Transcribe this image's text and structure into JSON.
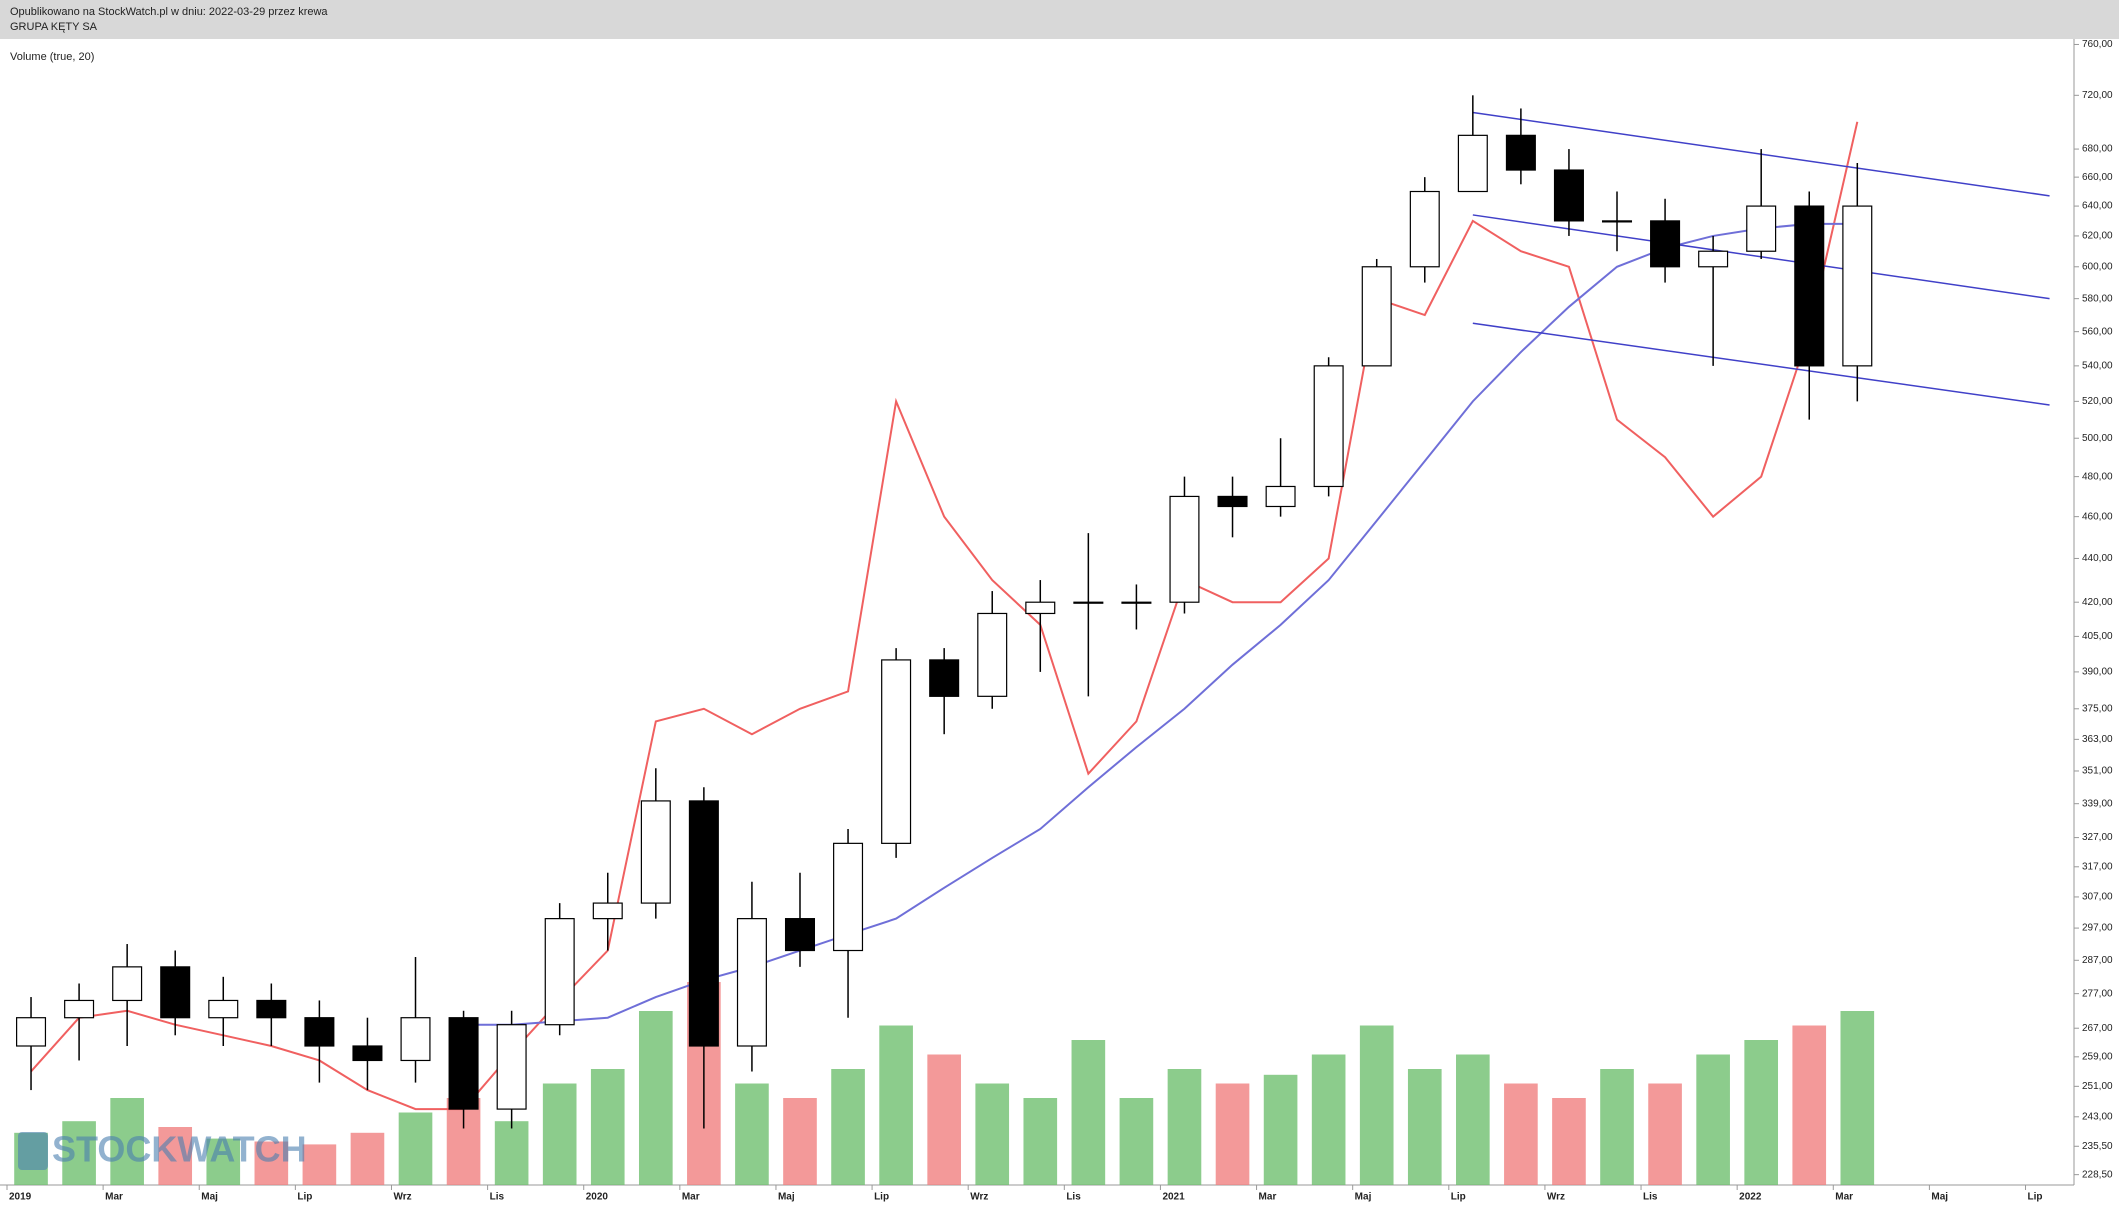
{
  "chart_data": {
    "type": "candlestick",
    "header": [
      "Opublikowano na StockWatch.pl w dniu: 2022-03-29 przez krewa",
      "GRUPA KĘTY SA"
    ],
    "indicator_label": "Volume (true, 20)",
    "logo": "STOCKWATCH",
    "log_scale": true,
    "categories": [
      "2019-01",
      "2019-02",
      "2019-03",
      "2019-04",
      "2019-05",
      "2019-06",
      "2019-07",
      "2019-08",
      "2019-09",
      "2019-10",
      "2019-11",
      "2019-12",
      "2020-01",
      "2020-02",
      "2020-03",
      "2020-04",
      "2020-05",
      "2020-06",
      "2020-07",
      "2020-08",
      "2020-09",
      "2020-10",
      "2020-11",
      "2020-12",
      "2021-01",
      "2021-02",
      "2021-03",
      "2021-04",
      "2021-05",
      "2021-06",
      "2021-07",
      "2021-08",
      "2021-09",
      "2021-10",
      "2021-11",
      "2021-12",
      "2022-01",
      "2022-02",
      "2022-03"
    ],
    "ohlc": {
      "open": [
        262,
        270,
        275,
        285,
        270,
        275,
        270,
        262,
        258,
        270,
        245,
        268,
        300,
        305,
        340,
        262,
        300,
        290,
        325,
        395,
        380,
        415,
        420,
        420,
        420,
        470,
        465,
        475,
        540,
        600,
        650,
        690,
        665,
        630,
        630,
        600,
        610,
        640,
        540
      ],
      "high": [
        276,
        280,
        292,
        290,
        282,
        280,
        275,
        270,
        288,
        272,
        272,
        305,
        315,
        352,
        345,
        312,
        315,
        330,
        400,
        400,
        425,
        430,
        452,
        428,
        480,
        480,
        500,
        545,
        605,
        660,
        720,
        710,
        680,
        650,
        645,
        620,
        680,
        650,
        670
      ],
      "low": [
        250,
        258,
        262,
        265,
        262,
        262,
        252,
        250,
        252,
        240,
        240,
        265,
        290,
        300,
        240,
        255,
        285,
        270,
        320,
        365,
        375,
        390,
        380,
        408,
        415,
        450,
        460,
        470,
        540,
        590,
        650,
        655,
        620,
        610,
        590,
        540,
        605,
        510,
        520
      ],
      "close": [
        270,
        275,
        285,
        270,
        275,
        270,
        262,
        258,
        270,
        245,
        268,
        300,
        305,
        340,
        262,
        300,
        290,
        325,
        395,
        380,
        415,
        420,
        420,
        420,
        470,
        465,
        475,
        540,
        600,
        650,
        690,
        665,
        630,
        630,
        600,
        610,
        640,
        540,
        640
      ],
      "up_color": "#ffffff",
      "down_color": "#000000"
    },
    "lines": [
      {
        "color": "#f06060",
        "values": [
          255,
          270,
          272,
          268,
          265,
          262,
          258,
          250,
          245,
          245,
          260,
          275,
          290,
          370,
          375,
          365,
          375,
          382,
          520,
          460,
          430,
          410,
          350,
          370,
          430,
          420,
          420,
          440,
          580,
          570,
          630,
          610,
          600,
          510,
          490,
          460,
          480,
          560,
          700
        ]
      },
      {
        "color": "#6f6fd8",
        "values": [
          null,
          null,
          null,
          null,
          null,
          null,
          null,
          null,
          null,
          268,
          268,
          269,
          270,
          276,
          281,
          285,
          290,
          295,
          300,
          310,
          320,
          330,
          345,
          360,
          375,
          393,
          410,
          430,
          458,
          488,
          520,
          548,
          575,
          600,
          612,
          620,
          625,
          628,
          628
        ]
      }
    ],
    "channel": {
      "color": "#4040c8",
      "lines": [
        {
          "x": [
            "2021-07",
            "2022-07"
          ],
          "y": [
            707,
            647
          ]
        },
        {
          "x": [
            "2021-07",
            "2022-07"
          ],
          "y": [
            634,
            580
          ]
        },
        {
          "x": [
            "2021-07",
            "2022-07"
          ],
          "y": [
            565,
            518
          ]
        }
      ]
    },
    "volume": {
      "values": [
        18,
        22,
        30,
        20,
        16,
        15,
        14,
        18,
        25,
        30,
        22,
        35,
        40,
        60,
        70,
        35,
        30,
        40,
        55,
        45,
        35,
        30,
        50,
        30,
        40,
        35,
        38,
        45,
        55,
        40,
        45,
        35,
        30,
        40,
        35,
        45,
        50,
        55,
        60
      ],
      "up_color": "#6fbf6f",
      "down_color": "#f08080",
      "y2lim": [
        0,
        100
      ]
    },
    "ylim": [
      226,
      762
    ],
    "yticks": [
      {
        "value": 760,
        "label": "760,00"
      },
      {
        "value": 720,
        "label": "720,00"
      },
      {
        "value": 680,
        "label": "680,00"
      },
      {
        "value": 660,
        "label": "660,00"
      },
      {
        "value": 640,
        "label": "640,00"
      },
      {
        "value": 620,
        "label": "620,00"
      },
      {
        "value": 600,
        "label": "600,00"
      },
      {
        "value": 580,
        "label": "580,00"
      },
      {
        "value": 560,
        "label": "560,00"
      },
      {
        "value": 540,
        "label": "540,00"
      },
      {
        "value": 520,
        "label": "520,00"
      },
      {
        "value": 500,
        "label": "500,00"
      },
      {
        "value": 480,
        "label": "480,00"
      },
      {
        "value": 460,
        "label": "460,00"
      },
      {
        "value": 440,
        "label": "440,00"
      },
      {
        "value": 420,
        "label": "420,00"
      },
      {
        "value": 405,
        "label": "405,00"
      },
      {
        "value": 390,
        "label": "390,00"
      },
      {
        "value": 375,
        "label": "375,00"
      },
      {
        "value": 363,
        "label": "363,00"
      },
      {
        "value": 351,
        "label": "351,00"
      },
      {
        "value": 339,
        "label": "339,00"
      },
      {
        "value": 327,
        "label": "327,00"
      },
      {
        "value": 317,
        "label": "317,00"
      },
      {
        "value": 307,
        "label": "307,00"
      },
      {
        "value": 297,
        "label": "297,00"
      },
      {
        "value": 287,
        "label": "287,00"
      },
      {
        "value": 277,
        "label": "277,00"
      },
      {
        "value": 267,
        "label": "267,00"
      },
      {
        "value": 259,
        "label": "259,00"
      },
      {
        "value": 251,
        "label": "251,00"
      },
      {
        "value": 243,
        "label": "243,00"
      },
      {
        "value": 235.5,
        "label": "235,50"
      },
      {
        "value": 228.5,
        "label": "228,50"
      }
    ],
    "xticks": [
      {
        "value": "2019-01",
        "label": "2019"
      },
      {
        "value": "2019-03",
        "label": "Mar"
      },
      {
        "value": "2019-05",
        "label": "Maj"
      },
      {
        "value": "2019-07",
        "label": "Lip"
      },
      {
        "value": "2019-09",
        "label": "Wrz"
      },
      {
        "value": "2019-11",
        "label": "Lis"
      },
      {
        "value": "2020-01",
        "label": "2020"
      },
      {
        "value": "2020-03",
        "label": "Mar"
      },
      {
        "value": "2020-05",
        "label": "Maj"
      },
      {
        "value": "2020-07",
        "label": "Lip"
      },
      {
        "value": "2020-09",
        "label": "Wrz"
      },
      {
        "value": "2020-11",
        "label": "Lis"
      },
      {
        "value": "2021-01",
        "label": "2021"
      },
      {
        "value": "2021-03",
        "label": "Mar"
      },
      {
        "value": "2021-05",
        "label": "Maj"
      },
      {
        "value": "2021-07",
        "label": "Lip"
      },
      {
        "value": "2021-09",
        "label": "Wrz"
      },
      {
        "value": "2021-11",
        "label": "Lis"
      },
      {
        "value": "2022-01",
        "label": "2022"
      },
      {
        "value": "2022-03",
        "label": "Mar"
      },
      {
        "value": "2022-05",
        "label": "Maj"
      },
      {
        "value": "2022-07",
        "label": "Lip"
      }
    ]
  }
}
